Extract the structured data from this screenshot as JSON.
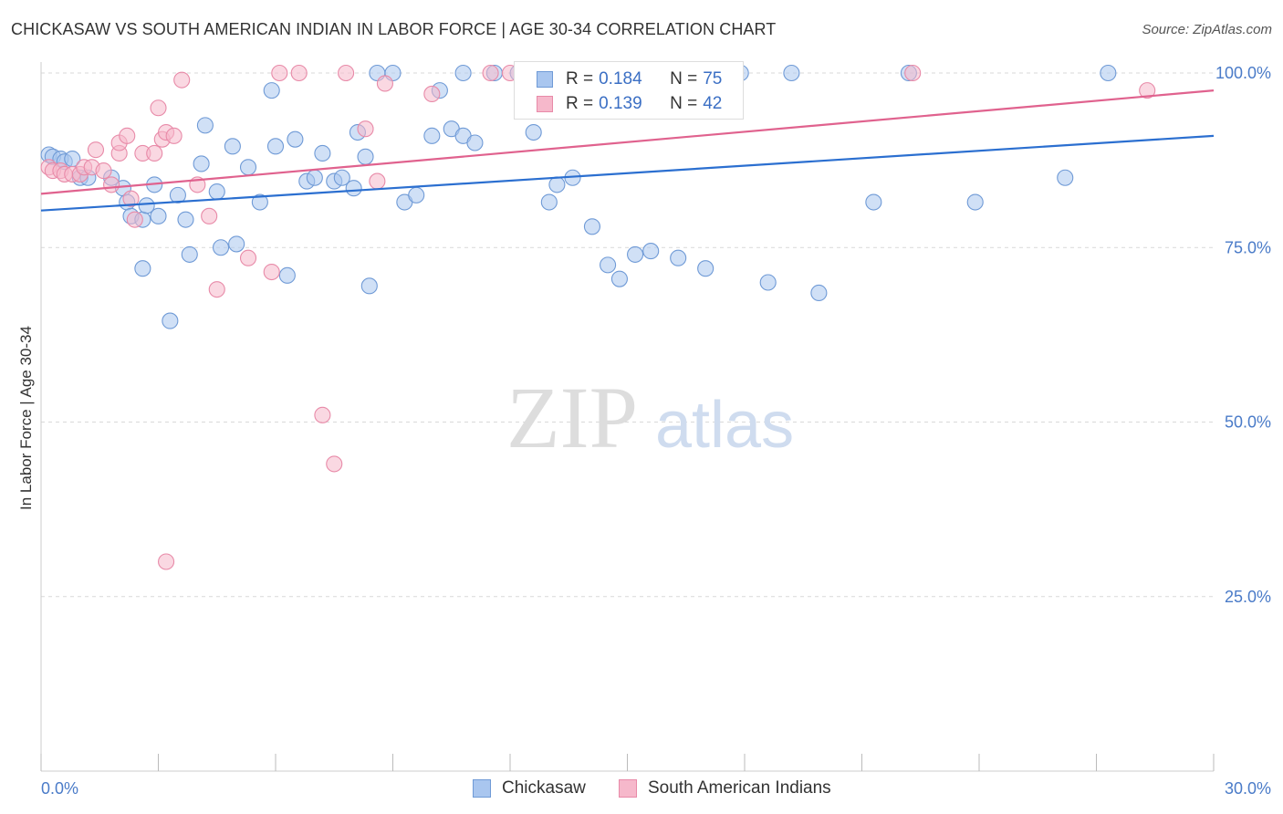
{
  "title": "CHICKASAW VS SOUTH AMERICAN INDIAN IN LABOR FORCE | AGE 30-34 CORRELATION CHART",
  "source": "Source: ZipAtlas.com",
  "watermark": {
    "zip": "ZIP",
    "atlas": "atlas"
  },
  "colors": {
    "blue_fill": "#a9c6ef",
    "blue_stroke": "#6f9ad6",
    "blue_line": "#2b6fd0",
    "pink_fill": "#f6b8cb",
    "pink_stroke": "#e88aa8",
    "pink_line": "#e0628e",
    "grid": "#d9d9d9",
    "tick_text": "#4a7bc8"
  },
  "legend": {
    "rows": [
      {
        "r_label": "R = ",
        "r_value": "0.184",
        "n_label": "N = ",
        "n_value": "75"
      },
      {
        "r_label": "R = ",
        "r_value": "0.139",
        "n_label": "N = ",
        "n_value": "42"
      }
    ]
  },
  "bottom_legend": {
    "series_a": "Chickasaw",
    "series_b": "South American Indians"
  },
  "chart_data": {
    "type": "scatter",
    "title": "CHICKASAW VS SOUTH AMERICAN INDIAN IN LABOR FORCE | AGE 30-34 CORRELATION CHART",
    "xlabel": "",
    "ylabel": "In Labor Force | Age 30-34",
    "xlim": [
      0,
      30
    ],
    "ylim": [
      0,
      100
    ],
    "x_tick_labels": [
      "0.0%",
      "30.0%"
    ],
    "y_tick_labels": [
      "25.0%",
      "50.0%",
      "75.0%",
      "100.0%"
    ],
    "y_ticks": [
      25,
      50,
      75,
      100
    ],
    "grid": true,
    "legend_position": "top-center",
    "series": [
      {
        "name": "Chickasaw",
        "R": 0.184,
        "N": 75,
        "trend": {
          "x": [
            0,
            30
          ],
          "y": [
            80.3,
            91.0
          ]
        },
        "points": [
          [
            0.2,
            88.3
          ],
          [
            0.3,
            88.0
          ],
          [
            0.5,
            87.7
          ],
          [
            0.6,
            87.3
          ],
          [
            0.8,
            87.7
          ],
          [
            1.0,
            85.0
          ],
          [
            1.2,
            85.0
          ],
          [
            1.8,
            85.0
          ],
          [
            2.1,
            83.5
          ],
          [
            2.2,
            81.5
          ],
          [
            2.3,
            79.5
          ],
          [
            2.6,
            79.0
          ],
          [
            2.6,
            72.0
          ],
          [
            2.7,
            81.0
          ],
          [
            2.9,
            84.0
          ],
          [
            3.0,
            79.5
          ],
          [
            3.3,
            64.5
          ],
          [
            3.5,
            82.5
          ],
          [
            3.7,
            79.0
          ],
          [
            3.8,
            74.0
          ],
          [
            4.1,
            87.0
          ],
          [
            4.2,
            92.5
          ],
          [
            4.5,
            83.0
          ],
          [
            4.6,
            75.0
          ],
          [
            4.9,
            89.5
          ],
          [
            5.0,
            75.5
          ],
          [
            5.3,
            86.5
          ],
          [
            5.6,
            81.5
          ],
          [
            5.9,
            97.5
          ],
          [
            6.0,
            89.5
          ],
          [
            6.3,
            71.0
          ],
          [
            6.5,
            90.5
          ],
          [
            6.8,
            84.5
          ],
          [
            7.0,
            85.0
          ],
          [
            7.2,
            88.5
          ],
          [
            7.5,
            84.5
          ],
          [
            7.7,
            85.0
          ],
          [
            8.0,
            83.5
          ],
          [
            8.1,
            91.5
          ],
          [
            8.3,
            88.0
          ],
          [
            8.4,
            69.5
          ],
          [
            8.6,
            100.0
          ],
          [
            9.0,
            100.0
          ],
          [
            9.3,
            81.5
          ],
          [
            9.6,
            82.5
          ],
          [
            10.0,
            91.0
          ],
          [
            10.2,
            97.5
          ],
          [
            10.5,
            92.0
          ],
          [
            10.8,
            91.0
          ],
          [
            10.8,
            100.0
          ],
          [
            11.1,
            90.0
          ],
          [
            11.6,
            100.0
          ],
          [
            12.2,
            100.0
          ],
          [
            12.6,
            91.5
          ],
          [
            13.0,
            81.5
          ],
          [
            13.2,
            84.0
          ],
          [
            13.6,
            85.0
          ],
          [
            14.1,
            78.0
          ],
          [
            14.5,
            72.5
          ],
          [
            14.8,
            70.5
          ],
          [
            15.2,
            74.0
          ],
          [
            15.6,
            74.5
          ],
          [
            16.3,
            73.5
          ],
          [
            17.5,
            97.0
          ],
          [
            17.9,
            100.0
          ],
          [
            18.6,
            70.0
          ],
          [
            19.2,
            100.0
          ],
          [
            19.9,
            68.5
          ],
          [
            21.3,
            81.5
          ],
          [
            22.2,
            100.0
          ],
          [
            23.9,
            81.5
          ],
          [
            26.2,
            85.0
          ],
          [
            27.3,
            100.0
          ],
          [
            15.4,
            100.0
          ],
          [
            17.0,
            72.0
          ]
        ]
      },
      {
        "name": "South American Indians",
        "R": 0.139,
        "N": 42,
        "trend": {
          "x": [
            0,
            30
          ],
          "y": [
            82.7,
            97.5
          ]
        },
        "points": [
          [
            0.2,
            86.5
          ],
          [
            0.3,
            86.0
          ],
          [
            0.5,
            86.0
          ],
          [
            0.6,
            85.5
          ],
          [
            0.8,
            85.5
          ],
          [
            1.0,
            85.5
          ],
          [
            1.1,
            86.5
          ],
          [
            1.3,
            86.5
          ],
          [
            1.4,
            89.0
          ],
          [
            1.6,
            86.0
          ],
          [
            1.8,
            84.0
          ],
          [
            2.0,
            88.5
          ],
          [
            2.0,
            90.0
          ],
          [
            2.2,
            91.0
          ],
          [
            2.3,
            82.0
          ],
          [
            2.4,
            79.0
          ],
          [
            2.6,
            88.5
          ],
          [
            2.9,
            88.5
          ],
          [
            3.0,
            95.0
          ],
          [
            3.1,
            90.5
          ],
          [
            3.2,
            91.5
          ],
          [
            3.4,
            91.0
          ],
          [
            3.6,
            99.0
          ],
          [
            4.0,
            84.0
          ],
          [
            4.3,
            79.5
          ],
          [
            4.5,
            69.0
          ],
          [
            5.3,
            73.5
          ],
          [
            5.9,
            71.5
          ],
          [
            6.1,
            100.0
          ],
          [
            6.6,
            100.0
          ],
          [
            7.2,
            51.0
          ],
          [
            7.5,
            44.0
          ],
          [
            7.8,
            100.0
          ],
          [
            8.3,
            92.0
          ],
          [
            8.6,
            84.5
          ],
          [
            8.8,
            98.5
          ],
          [
            10.0,
            97.0
          ],
          [
            11.5,
            100.0
          ],
          [
            12.0,
            100.0
          ],
          [
            22.3,
            100.0
          ],
          [
            28.3,
            97.5
          ],
          [
            3.2,
            30.0
          ]
        ]
      }
    ]
  }
}
